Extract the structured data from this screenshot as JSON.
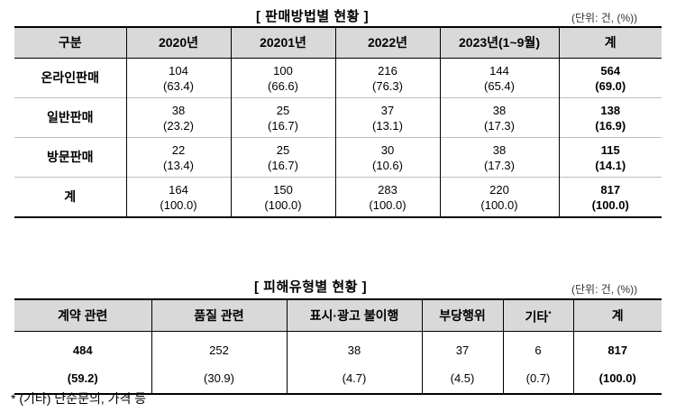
{
  "table1": {
    "title": "[ 판매방법별 현황 ]",
    "unit": "(단위: 건, (%))",
    "headers": [
      "구분",
      "2020년",
      "20201년",
      "2022년",
      "2023년(1~9월)",
      "계"
    ],
    "rows": [
      {
        "label": "온라인판매",
        "cells": [
          [
            "104",
            "(63.4)"
          ],
          [
            "100",
            "(66.6)"
          ],
          [
            "216",
            "(76.3)"
          ],
          [
            "144",
            "(65.4)"
          ],
          [
            "564",
            "(69.0)"
          ]
        ]
      },
      {
        "label": "일반판매",
        "cells": [
          [
            "38",
            "(23.2)"
          ],
          [
            "25",
            "(16.7)"
          ],
          [
            "37",
            "(13.1)"
          ],
          [
            "38",
            "(17.3)"
          ],
          [
            "138",
            "(16.9)"
          ]
        ]
      },
      {
        "label": "방문판매",
        "cells": [
          [
            "22",
            "(13.4)"
          ],
          [
            "25",
            "(16.7)"
          ],
          [
            "30",
            "(10.6)"
          ],
          [
            "38",
            "(17.3)"
          ],
          [
            "115",
            "(14.1)"
          ]
        ]
      },
      {
        "label": "계",
        "cells": [
          [
            "164",
            "(100.0)"
          ],
          [
            "150",
            "(100.0)"
          ],
          [
            "283",
            "(100.0)"
          ],
          [
            "220",
            "(100.0)"
          ],
          [
            "817",
            "(100.0)"
          ]
        ]
      }
    ]
  },
  "table2": {
    "title": "[ 피해유형별 현황 ]",
    "unit": "(단위: 건, (%))",
    "headers": [
      "계약 관련",
      "품질 관련",
      "표시·광고 불이행",
      "부당행위",
      "기타",
      "계"
    ],
    "header_mark": "*",
    "counts": [
      "484",
      "252",
      "38",
      "37",
      "6",
      "817"
    ],
    "percents": [
      "(59.2)",
      "(30.9)",
      "(4.7)",
      "(4.5)",
      "(0.7)",
      "(100.0)"
    ]
  },
  "footnote": "* (기타) 단순문의, 가격 등"
}
